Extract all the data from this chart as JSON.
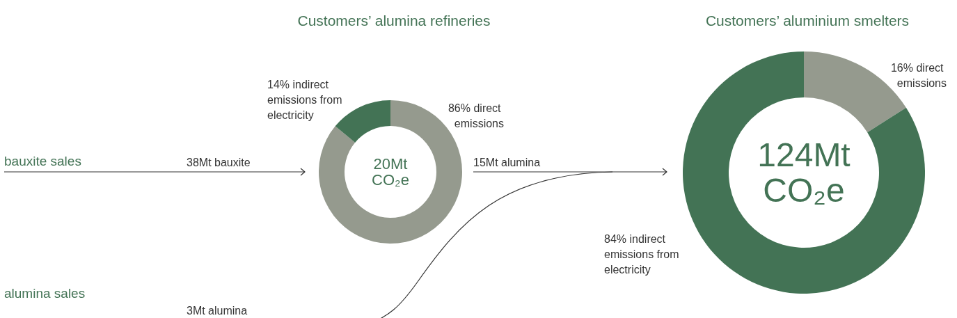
{
  "chart_data": [
    {
      "type": "donut",
      "title": "Customers’ alumina refineries",
      "categories": [
        "86% direct emissions",
        "14% indirect emissions from electricity"
      ],
      "values": [
        86,
        14
      ],
      "colors": [
        "#959a8e",
        "#437355"
      ],
      "annotations": [
        "20Mt CO₂e",
        "bauxite sales",
        "38Mt bauxite",
        "alumina sales",
        "3Mt alumina",
        "15Mt alumina"
      ]
    },
    {
      "type": "donut",
      "title": "Customers’ aluminium smelters",
      "categories": [
        "16% direct emissions",
        "84% indirect emissions from electricity"
      ],
      "values": [
        16,
        84
      ],
      "colors": [
        "#959a8e",
        "#437355"
      ],
      "annotations": [
        "124Mt CO₂e"
      ]
    }
  ]
}
